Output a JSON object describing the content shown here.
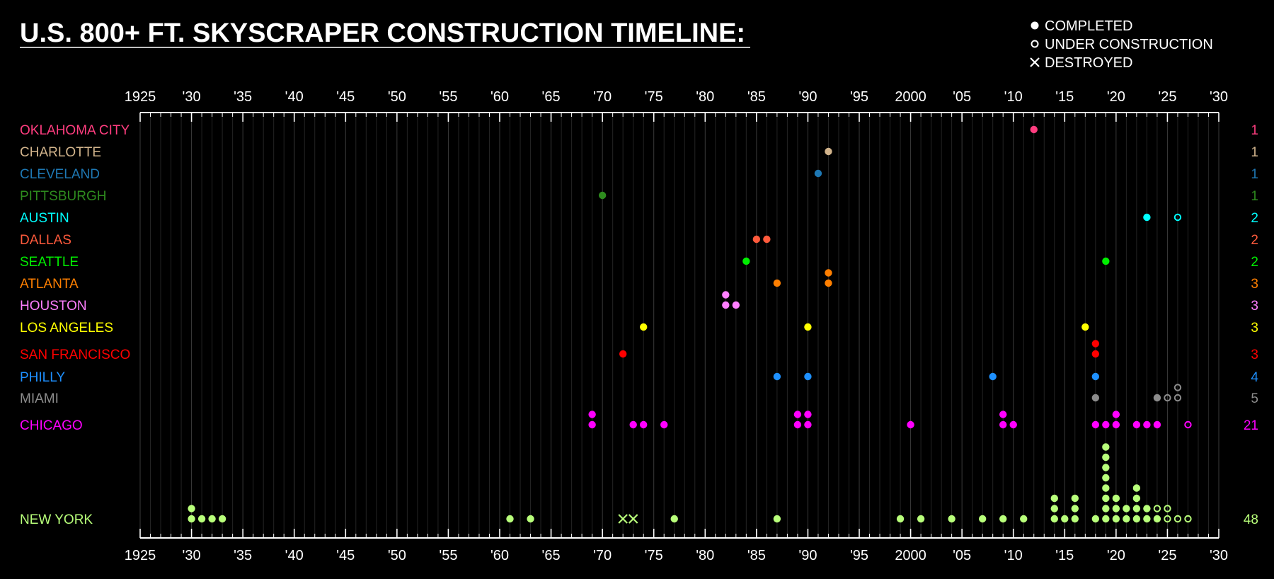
{
  "chart_data": {
    "type": "scatter",
    "title": "U.S. 800+ FT. SKYSCRAPER CONSTRUCTION TIMELINE:",
    "xlim": [
      1925,
      2030
    ],
    "x_tick_labels": [
      "1925",
      "'30",
      "'35",
      "'40",
      "'45",
      "'50",
      "'55",
      "'60",
      "'65",
      "'70",
      "'75",
      "'80",
      "'85",
      "'90",
      "'95",
      "2000",
      "'05",
      "'10",
      "'15",
      "'20",
      "'25",
      "'30"
    ],
    "grid": true,
    "legend_position": "top-right",
    "legend": [
      {
        "marker": "completed",
        "label": "COMPLETED"
      },
      {
        "marker": "under_construction",
        "label": "UNDER CONSTRUCTION"
      },
      {
        "marker": "destroyed",
        "label": "DESTROYED"
      }
    ],
    "series": [
      {
        "name": "OKLAHOMA CITY",
        "color": "#ff3d7f",
        "count": 1,
        "points": [
          [
            2012,
            1,
            "completed"
          ]
        ]
      },
      {
        "name": "CHARLOTTE",
        "color": "#d2b48c",
        "count": 1,
        "points": [
          [
            1992,
            1,
            "completed"
          ]
        ]
      },
      {
        "name": "CLEVELAND",
        "color": "#1e78b4",
        "count": 1,
        "points": [
          [
            1991,
            1,
            "completed"
          ]
        ]
      },
      {
        "name": "PITTSBURGH",
        "color": "#2e8b1e",
        "count": 1,
        "points": [
          [
            1970,
            1,
            "completed"
          ]
        ]
      },
      {
        "name": "AUSTIN",
        "color": "#00ffff",
        "count": 2,
        "points": [
          [
            2023,
            1,
            "completed"
          ],
          [
            2026,
            1,
            "under_construction"
          ]
        ]
      },
      {
        "name": "DALLAS",
        "color": "#ff5a3c",
        "count": 2,
        "points": [
          [
            1985,
            1,
            "completed"
          ],
          [
            1986,
            1,
            "completed"
          ]
        ]
      },
      {
        "name": "SEATTLE",
        "color": "#00ee00",
        "count": 2,
        "points": [
          [
            1984,
            1,
            "completed"
          ],
          [
            2019,
            1,
            "completed"
          ]
        ]
      },
      {
        "name": "ATLANTA",
        "color": "#ff7f00",
        "count": 3,
        "points": [
          [
            1987,
            1,
            "completed"
          ],
          [
            1992,
            1,
            "completed"
          ],
          [
            1992,
            2,
            "completed"
          ]
        ]
      },
      {
        "name": "HOUSTON",
        "color": "#ff7fff",
        "count": 3,
        "points": [
          [
            1982,
            1,
            "completed"
          ],
          [
            1982,
            2,
            "completed"
          ],
          [
            1983,
            1,
            "completed"
          ]
        ]
      },
      {
        "name": "LOS ANGELES",
        "color": "#ffff00",
        "count": 3,
        "points": [
          [
            1974,
            1,
            "completed"
          ],
          [
            1990,
            1,
            "completed"
          ],
          [
            2017,
            1,
            "completed"
          ]
        ]
      },
      {
        "name": "SAN FRANCISCO",
        "color": "#ff0000",
        "count": 3,
        "points": [
          [
            1972,
            1,
            "completed"
          ],
          [
            2018,
            1,
            "completed"
          ],
          [
            2018,
            2,
            "completed"
          ]
        ]
      },
      {
        "name": "PHILLY",
        "color": "#1e90ff",
        "count": 4,
        "points": [
          [
            1987,
            1,
            "completed"
          ],
          [
            1990,
            1,
            "completed"
          ],
          [
            2008,
            1,
            "completed"
          ],
          [
            2018,
            1,
            "completed"
          ]
        ]
      },
      {
        "name": "MIAMI",
        "color": "#8c8c8c",
        "count": 5,
        "points": [
          [
            2018,
            1,
            "completed"
          ],
          [
            2024,
            1,
            "completed"
          ],
          [
            2025,
            1,
            "under_construction"
          ],
          [
            2026,
            1,
            "under_construction"
          ],
          [
            2026,
            2,
            "under_construction"
          ]
        ]
      },
      {
        "name": "CHICAGO",
        "color": "#ff00ff",
        "count": 21,
        "points": [
          [
            1969,
            1,
            "completed"
          ],
          [
            1969,
            2,
            "completed"
          ],
          [
            1973,
            1,
            "completed"
          ],
          [
            1974,
            1,
            "completed"
          ],
          [
            1976,
            1,
            "completed"
          ],
          [
            1989,
            1,
            "completed"
          ],
          [
            1989,
            2,
            "completed"
          ],
          [
            1990,
            1,
            "completed"
          ],
          [
            1990,
            2,
            "completed"
          ],
          [
            2000,
            1,
            "completed"
          ],
          [
            2009,
            1,
            "completed"
          ],
          [
            2009,
            2,
            "completed"
          ],
          [
            2010,
            1,
            "completed"
          ],
          [
            2018,
            1,
            "completed"
          ],
          [
            2019,
            1,
            "completed"
          ],
          [
            2020,
            1,
            "completed"
          ],
          [
            2020,
            2,
            "completed"
          ],
          [
            2022,
            1,
            "completed"
          ],
          [
            2023,
            1,
            "completed"
          ],
          [
            2024,
            1,
            "completed"
          ],
          [
            2027,
            1,
            "under_construction"
          ]
        ]
      },
      {
        "name": "NEW YORK",
        "color": "#b8ff7a",
        "count": 48,
        "points": [
          [
            1930,
            1,
            "completed"
          ],
          [
            1930,
            2,
            "completed"
          ],
          [
            1931,
            1,
            "completed"
          ],
          [
            1932,
            1,
            "completed"
          ],
          [
            1933,
            1,
            "completed"
          ],
          [
            1961,
            1,
            "completed"
          ],
          [
            1963,
            1,
            "completed"
          ],
          [
            1972,
            1,
            "destroyed"
          ],
          [
            1973,
            1,
            "destroyed"
          ],
          [
            1977,
            1,
            "completed"
          ],
          [
            1987,
            1,
            "completed"
          ],
          [
            1999,
            1,
            "completed"
          ],
          [
            2001,
            1,
            "completed"
          ],
          [
            2004,
            1,
            "completed"
          ],
          [
            2007,
            1,
            "completed"
          ],
          [
            2009,
            1,
            "completed"
          ],
          [
            2011,
            1,
            "completed"
          ],
          [
            2014,
            1,
            "completed"
          ],
          [
            2014,
            2,
            "completed"
          ],
          [
            2014,
            3,
            "completed"
          ],
          [
            2015,
            1,
            "completed"
          ],
          [
            2016,
            1,
            "completed"
          ],
          [
            2016,
            2,
            "completed"
          ],
          [
            2016,
            3,
            "completed"
          ],
          [
            2018,
            1,
            "completed"
          ],
          [
            2019,
            1,
            "completed"
          ],
          [
            2019,
            2,
            "completed"
          ],
          [
            2019,
            3,
            "completed"
          ],
          [
            2019,
            4,
            "completed"
          ],
          [
            2019,
            5,
            "completed"
          ],
          [
            2019,
            6,
            "completed"
          ],
          [
            2019,
            7,
            "completed"
          ],
          [
            2019,
            8,
            "completed"
          ],
          [
            2020,
            1,
            "completed"
          ],
          [
            2020,
            2,
            "completed"
          ],
          [
            2020,
            3,
            "completed"
          ],
          [
            2021,
            1,
            "completed"
          ],
          [
            2021,
            2,
            "completed"
          ],
          [
            2022,
            1,
            "completed"
          ],
          [
            2022,
            2,
            "completed"
          ],
          [
            2022,
            3,
            "completed"
          ],
          [
            2022,
            4,
            "completed"
          ],
          [
            2023,
            1,
            "completed"
          ],
          [
            2023,
            2,
            "completed"
          ],
          [
            2024,
            1,
            "completed"
          ],
          [
            2024,
            2,
            "under_construction"
          ],
          [
            2025,
            1,
            "under_construction"
          ],
          [
            2025,
            2,
            "under_construction"
          ],
          [
            2026,
            1,
            "under_construction"
          ],
          [
            2027,
            1,
            "under_construction"
          ]
        ]
      }
    ]
  }
}
